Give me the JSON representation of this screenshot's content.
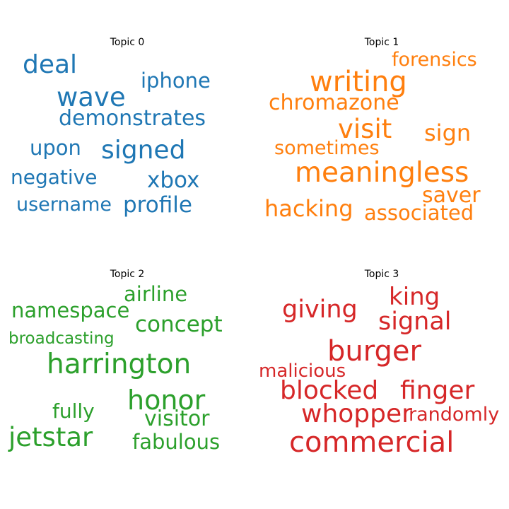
{
  "topics": [
    {
      "title": "Topic 0",
      "color": "#1f77b4",
      "words": [
        "deal",
        "iphone",
        "wave",
        "demonstrates",
        "upon",
        "signed",
        "negative",
        "xbox",
        "username",
        "profile"
      ]
    },
    {
      "title": "Topic 1",
      "color": "#ff7f0e",
      "words": [
        "forensics",
        "writing",
        "chromazone",
        "visit",
        "sign",
        "sometimes",
        "meaningless",
        "saver",
        "hacking",
        "associated"
      ]
    },
    {
      "title": "Topic 2",
      "color": "#2ca02c",
      "words": [
        "airline",
        "namespace",
        "concept",
        "broadcasting",
        "harrington",
        "honor",
        "fully",
        "visitor",
        "jetstar",
        "fabulous"
      ]
    },
    {
      "title": "Topic 3",
      "color": "#d62728",
      "words": [
        "king",
        "giving",
        "signal",
        "burger",
        "malicious",
        "blocked",
        "finger",
        "whopper",
        "randomly",
        "commercial"
      ]
    }
  ]
}
